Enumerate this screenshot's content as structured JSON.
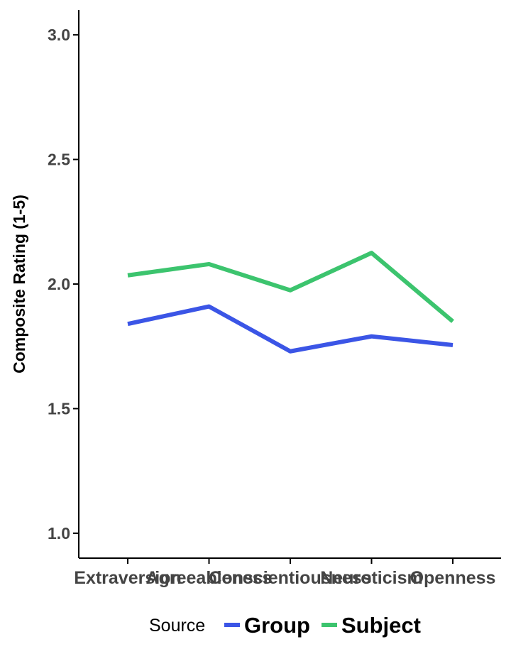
{
  "chart_data": {
    "type": "line",
    "title": "",
    "xlabel": "",
    "ylabel": "Composite Rating (1-5)",
    "categories": [
      "Extraversion",
      "Agreeableness",
      "Conscientiousness",
      "Neuroticism",
      "Openness"
    ],
    "series": [
      {
        "name": "Group",
        "color": "#3b55e6",
        "values": [
          1.84,
          1.91,
          1.73,
          1.79,
          1.755
        ]
      },
      {
        "name": "Subject",
        "color": "#3cc46e",
        "values": [
          2.035,
          2.08,
          1.975,
          2.125,
          1.85
        ]
      }
    ],
    "ylim": [
      0.9,
      3.1
    ],
    "yticks": [
      1.0,
      1.5,
      2.0,
      2.5,
      3.0
    ],
    "ytick_labels": [
      "1.0",
      "1.5",
      "2.0",
      "2.5",
      "3.0"
    ],
    "grid": false,
    "legend": {
      "title": "Source",
      "position": "bottom"
    }
  }
}
